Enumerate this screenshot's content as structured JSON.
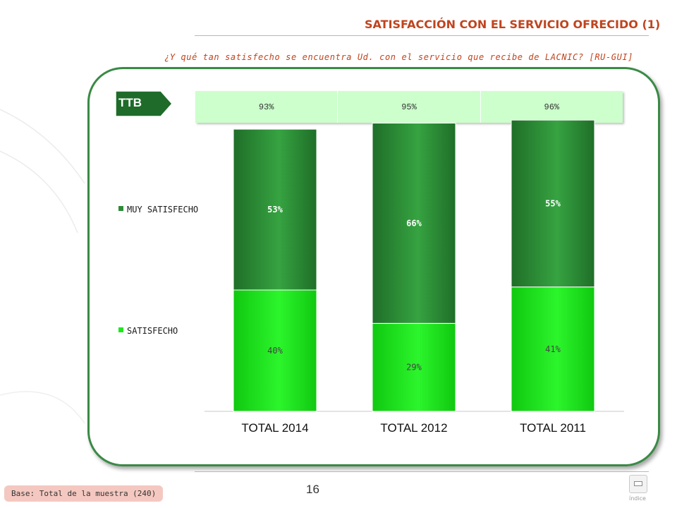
{
  "header": {
    "title": "SATISFACCIÓN CON EL SERVICIO OFRECIDO (1)",
    "subtitle": "¿Y qué tan satisfecho se encuentra Ud. con el servicio que recibe de LACNIC? [RU-GUI]"
  },
  "ttb": {
    "label": "TTB",
    "values": [
      "93%",
      "95%",
      "96%"
    ]
  },
  "chart_data": {
    "type": "bar",
    "stacked": true,
    "categories": [
      "TOTAL 2014",
      "TOTAL 2012",
      "TOTAL 2011"
    ],
    "series": [
      {
        "name": "SATISFECHO",
        "values": [
          40,
          29,
          41
        ],
        "color": "#1ee81e"
      },
      {
        "name": "MUY SATISFECHO",
        "values": [
          53,
          66,
          55
        ],
        "color": "#2e8b38"
      }
    ],
    "value_format": "percent",
    "legend": "left",
    "grid": false,
    "ylim": [
      0,
      100
    ]
  },
  "footer": {
    "base": "Base: Total de la muestra (240)",
    "page_number": "16",
    "index_label": "índice"
  },
  "colors": {
    "accent": "#c0441e",
    "panel_border": "#3a8a45",
    "ttb_row": "#ccffcc",
    "ttb_arrow": "#1f6b2a"
  }
}
